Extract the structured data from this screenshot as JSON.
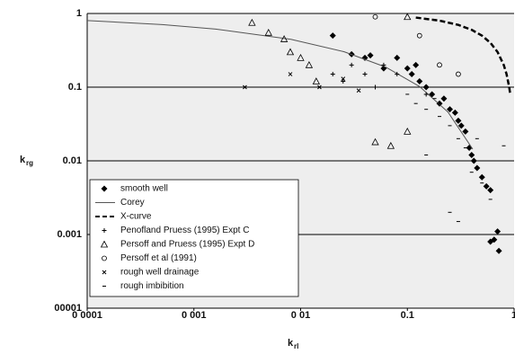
{
  "chart_data": {
    "type": "scatter",
    "x_label": "k",
    "x_label_sub": "rl",
    "y_label": "k",
    "y_label_sub": "rg",
    "log_x": true,
    "log_y": true,
    "grid": true,
    "legend": "lower left",
    "xlim": [
      0.0001,
      1
    ],
    "ylim": [
      0.0001,
      1
    ],
    "xticks": [
      {
        "value": 0.0001,
        "label": "0 0001"
      },
      {
        "value": 0.001,
        "label": "0 001"
      },
      {
        "value": 0.01,
        "label": "0 01"
      },
      0.1,
      1
    ],
    "yticks": [
      {
        "value": 0.0001,
        "label": "00001"
      },
      0.001,
      0.01,
      0.1,
      1
    ],
    "series": [
      {
        "name": "smooth well",
        "color": "#000000",
        "marker": "diamond",
        "x": [
          0.02,
          0.03,
          0.04,
          0.045,
          0.06,
          0.08,
          0.1,
          0.11,
          0.12,
          0.13,
          0.15,
          0.17,
          0.2,
          0.22,
          0.25,
          0.28,
          0.3,
          0.32,
          0.35,
          0.38,
          0.4,
          0.42,
          0.45,
          0.5,
          0.55,
          0.6,
          0.65,
          0.7,
          0.72,
          0.6
        ],
        "values": [
          0.5,
          0.28,
          0.25,
          0.27,
          0.18,
          0.25,
          0.18,
          0.15,
          0.2,
          0.12,
          0.1,
          0.08,
          0.06,
          0.07,
          0.05,
          0.045,
          0.035,
          0.03,
          0.025,
          0.015,
          0.012,
          0.01,
          0.008,
          0.006,
          0.0045,
          0.004,
          0.00085,
          0.0011,
          0.0006,
          0.0008
        ]
      },
      {
        "name": "Corey",
        "color": "#555555",
        "marker": "none",
        "line_style": "solid",
        "x": [
          0.0001,
          0.000506,
          0.0016,
          0.0081,
          0.0256,
          0.0625,
          0.1296,
          0.2401,
          0.4096
        ],
        "values": [
          0.802,
          0.706,
          0.614,
          0.446,
          0.302,
          0.1875,
          0.1024,
          0.0459,
          0.0144
        ]
      },
      {
        "name": "X-curve",
        "color": "#000000",
        "marker": "none",
        "line_style": "dashed",
        "x": [
          0.12,
          0.2,
          0.3,
          0.4,
          0.5,
          0.6,
          0.7,
          0.8,
          0.85,
          0.9,
          0.92
        ],
        "values": [
          0.88,
          0.8,
          0.7,
          0.6,
          0.5,
          0.4,
          0.3,
          0.2,
          0.15,
          0.1,
          0.08
        ]
      },
      {
        "name": "Penofland Pruess (1995) Expt C",
        "color": "#000000",
        "marker": "plus",
        "x": [
          0.02,
          0.025,
          0.03,
          0.04,
          0.05,
          0.06,
          0.08,
          0.15,
          0.2
        ],
        "values": [
          0.15,
          0.12,
          0.2,
          0.15,
          0.1,
          0.2,
          0.15,
          0.08,
          0.06
        ]
      },
      {
        "name": "Persoff and Pruess (1995) Expt D",
        "color": "#000000",
        "marker": "triangle",
        "x": [
          0.0035,
          0.005,
          0.007,
          0.008,
          0.01,
          0.012,
          0.014,
          0.1,
          0.05,
          0.07,
          0.1
        ],
        "values": [
          0.75,
          0.55,
          0.45,
          0.3,
          0.25,
          0.2,
          0.12,
          0.9,
          0.018,
          0.016,
          0.025
        ]
      },
      {
        "name": "Persoff et al (1991)",
        "color": "#000000",
        "marker": "circle",
        "x": [
          0.05,
          0.13,
          0.2,
          0.3
        ],
        "values": [
          0.9,
          0.5,
          0.2,
          0.15
        ]
      },
      {
        "name": "rough well drainage",
        "color": "#000000",
        "marker": "cross",
        "x": [
          0.003,
          0.008,
          0.015,
          0.025,
          0.035
        ],
        "values": [
          0.1,
          0.15,
          0.1,
          0.13,
          0.09
        ]
      },
      {
        "name": "rough imbibition",
        "color": "#000000",
        "marker": "dash",
        "x": [
          0.1,
          0.12,
          0.15,
          0.18,
          0.2,
          0.25,
          0.3,
          0.35,
          0.4,
          0.5,
          0.6,
          0.7,
          0.8,
          0.25,
          0.3,
          0.15,
          0.45
        ],
        "values": [
          0.08,
          0.06,
          0.05,
          0.07,
          0.04,
          0.03,
          0.02,
          0.015,
          0.007,
          0.005,
          0.003,
          0.01,
          0.016,
          0.002,
          0.0015,
          0.012,
          0.02
        ]
      }
    ]
  }
}
